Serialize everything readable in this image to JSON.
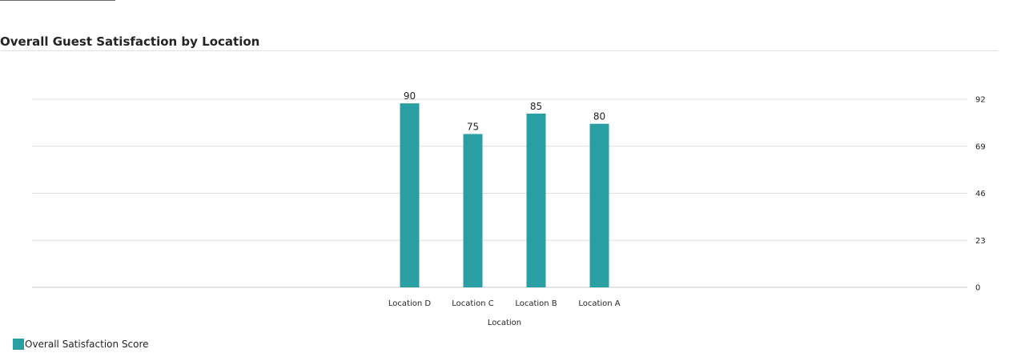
{
  "chart_data": {
    "type": "bar",
    "title": "Overall Guest Satisfaction by Location",
    "categories": [
      "Location D",
      "Location C",
      "Location B",
      "Location A"
    ],
    "series": [
      {
        "name": "Overall Satisfaction Score",
        "values": [
          90,
          75,
          85,
          80
        ],
        "color": "#2a9fa3"
      }
    ],
    "xlabel": "Location",
    "ylabel": "",
    "ylim": [
      0,
      92
    ],
    "yticks": [
      0,
      23,
      46,
      69,
      92
    ],
    "y_axis_side": "right",
    "grid": true,
    "data_labels": true,
    "legend_position": "bottom-left"
  }
}
